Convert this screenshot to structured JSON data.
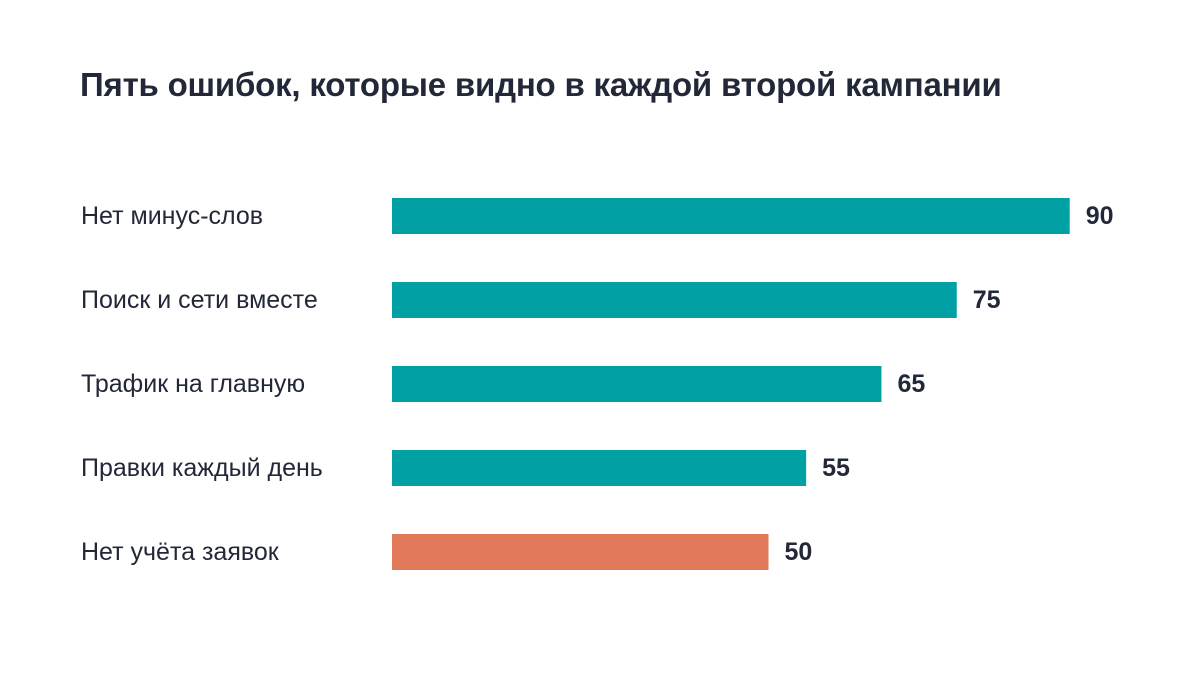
{
  "chart_data": {
    "type": "bar",
    "orientation": "horizontal",
    "title": "Пять ошибок, которые видно в каждой второй кампании",
    "categories": [
      "Нет минус-слов",
      "Поиск и сети вместе",
      "Трафик на главную",
      "Правки каждый день",
      "Нет учёта заявок"
    ],
    "values": [
      90,
      75,
      65,
      55,
      50
    ],
    "colors": [
      "#00A0A4",
      "#00A0A4",
      "#00A0A4",
      "#00A0A4",
      "#E2795B"
    ],
    "xlim": [
      0,
      100
    ],
    "grid": false,
    "legend": "none"
  }
}
